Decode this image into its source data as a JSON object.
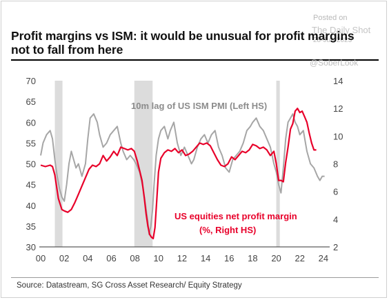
{
  "title": "Profit margins vs ISM: it would be unusual for profit margins not to fall from here",
  "watermark": {
    "posted": "Posted on",
    "brand": "The Daily Shot",
    "date": "28-Jun-2023",
    "handle": "@SoberLook"
  },
  "source": "Source: Datastream, SG Cross Asset Research/ Equity Strategy",
  "chart_data": {
    "type": "line",
    "x_ticks": [
      "00",
      "02",
      "04",
      "06",
      "08",
      "10",
      "12",
      "14",
      "16",
      "18",
      "20",
      "22",
      "24"
    ],
    "xlim": [
      2000,
      2024.3
    ],
    "y_left": {
      "lim": [
        30,
        70
      ],
      "ticks": [
        "30",
        "35",
        "40",
        "45",
        "50",
        "55",
        "60",
        "65",
        "70"
      ]
    },
    "y_right": {
      "lim": [
        2,
        14
      ],
      "ticks": [
        "2",
        "4",
        "6",
        "8",
        "10",
        "12",
        "14"
      ]
    },
    "recessions": [
      [
        2001.2,
        2001.85
      ],
      [
        2007.95,
        2009.5
      ],
      [
        2020.0,
        2020.3
      ]
    ],
    "annotations": {
      "ism": "10m lag of US ISM PMI (Left HS)",
      "margin_line1": "US equities net profit margin",
      "margin_line2": "(%, Right HS)"
    },
    "series": [
      {
        "name": "10m lag of US ISM PMI (Left HS)",
        "axis": "left",
        "color": "#a6a6a6",
        "x": [
          2000.0,
          2000.2,
          2000.5,
          2000.8,
          2001.0,
          2001.2,
          2001.4,
          2001.6,
          2001.8,
          2002.0,
          2002.2,
          2002.4,
          2002.6,
          2002.8,
          2003.0,
          2003.2,
          2003.5,
          2003.8,
          2004.0,
          2004.2,
          2004.5,
          2004.8,
          2005.0,
          2005.3,
          2005.6,
          2005.9,
          2006.2,
          2006.5,
          2006.8,
          2007.0,
          2007.3,
          2007.6,
          2007.9,
          2008.1,
          2008.4,
          2008.7,
          2008.9,
          2009.1,
          2009.2,
          2009.35,
          2009.5,
          2009.6,
          2009.8,
          2010.0,
          2010.2,
          2010.5,
          2010.8,
          2011.0,
          2011.3,
          2011.6,
          2011.9,
          2012.2,
          2012.5,
          2012.8,
          2013.0,
          2013.3,
          2013.6,
          2013.9,
          2014.2,
          2014.5,
          2014.8,
          2015.1,
          2015.4,
          2015.7,
          2016.0,
          2016.3,
          2016.6,
          2016.9,
          2017.2,
          2017.5,
          2017.8,
          2018.0,
          2018.3,
          2018.6,
          2018.9,
          2019.2,
          2019.5,
          2019.8,
          2020.0,
          2020.2,
          2020.4,
          2020.6,
          2020.8,
          2021.0,
          2021.2,
          2021.4,
          2021.6,
          2021.8,
          2022.0,
          2022.3,
          2022.6,
          2022.9,
          2023.2,
          2023.5,
          2023.7,
          2023.9,
          2024.1
        ],
        "y": [
          52,
          55,
          57,
          58,
          56,
          51,
          47,
          44,
          42,
          41,
          45,
          50,
          53,
          51,
          49,
          50,
          47,
          50,
          56,
          61,
          62,
          60,
          57,
          54,
          55,
          57,
          58,
          59,
          55,
          53,
          51,
          52,
          51,
          50,
          48,
          44,
          40,
          36,
          33,
          35,
          39,
          44,
          52,
          56,
          58,
          59,
          56,
          58,
          60,
          55,
          52,
          54,
          52,
          50,
          51,
          54,
          56,
          57,
          55,
          57,
          58,
          54,
          52,
          49,
          48,
          51,
          52,
          53,
          55,
          58,
          59,
          60,
          61,
          59,
          58,
          56,
          54,
          50,
          48,
          45,
          43,
          49,
          56,
          60,
          61,
          62,
          60,
          59,
          57,
          58,
          53,
          50,
          49,
          47,
          46,
          47,
          47
        ]
      },
      {
        "name": "US equities net profit margin (%, Right HS)",
        "axis": "right",
        "color": "#e8002a",
        "x": [
          2000.0,
          2000.4,
          2000.8,
          2001.0,
          2001.2,
          2001.5,
          2001.8,
          2002.0,
          2002.3,
          2002.6,
          2002.9,
          2003.2,
          2003.5,
          2003.8,
          2004.1,
          2004.4,
          2004.7,
          2005.0,
          2005.3,
          2005.6,
          2005.9,
          2006.2,
          2006.5,
          2006.8,
          2007.1,
          2007.4,
          2007.7,
          2007.95,
          2008.2,
          2008.4,
          2008.6,
          2008.8,
          2008.95,
          2009.1,
          2009.25,
          2009.4,
          2009.55,
          2009.7,
          2009.85,
          2010.0,
          2010.2,
          2010.5,
          2010.8,
          2011.1,
          2011.4,
          2011.7,
          2012.0,
          2012.3,
          2012.6,
          2012.9,
          2013.2,
          2013.5,
          2013.8,
          2014.1,
          2014.4,
          2014.7,
          2015.0,
          2015.3,
          2015.6,
          2015.9,
          2016.2,
          2016.5,
          2016.8,
          2017.1,
          2017.4,
          2017.7,
          2018.0,
          2018.3,
          2018.6,
          2018.9,
          2019.2,
          2019.5,
          2019.8,
          2020.0,
          2020.2,
          2020.4,
          2020.6,
          2020.8,
          2021.0,
          2021.2,
          2021.4,
          2021.6,
          2021.8,
          2022.0,
          2022.2,
          2022.4,
          2022.6,
          2022.8,
          2023.0,
          2023.2,
          2023.4
        ],
        "y": [
          7.9,
          7.8,
          7.9,
          7.8,
          7.2,
          5.5,
          4.7,
          4.6,
          4.5,
          4.7,
          5.2,
          5.8,
          6.4,
          7.0,
          7.6,
          7.9,
          7.8,
          8.0,
          8.6,
          8.2,
          8.5,
          8.9,
          8.6,
          9.2,
          9.1,
          9.0,
          9.1,
          8.9,
          8.2,
          7.5,
          6.8,
          5.5,
          4.4,
          3.5,
          2.9,
          2.7,
          2.6,
          3.4,
          5.3,
          7.4,
          8.4,
          8.8,
          9.0,
          8.9,
          9.1,
          8.8,
          9.0,
          8.6,
          8.7,
          8.9,
          9.2,
          9.5,
          9.4,
          9.5,
          9.3,
          8.8,
          8.3,
          7.9,
          7.8,
          8.0,
          8.5,
          8.3,
          8.6,
          8.9,
          8.8,
          9.0,
          9.4,
          9.3,
          9.1,
          9.2,
          9.0,
          8.6,
          8.9,
          8.0,
          6.8,
          6.8,
          6.7,
          8.1,
          9.2,
          10.5,
          10.9,
          11.8,
          12.0,
          11.7,
          11.8,
          11.4,
          11.0,
          10.2,
          9.5,
          9.0,
          9.0
        ]
      }
    ]
  }
}
